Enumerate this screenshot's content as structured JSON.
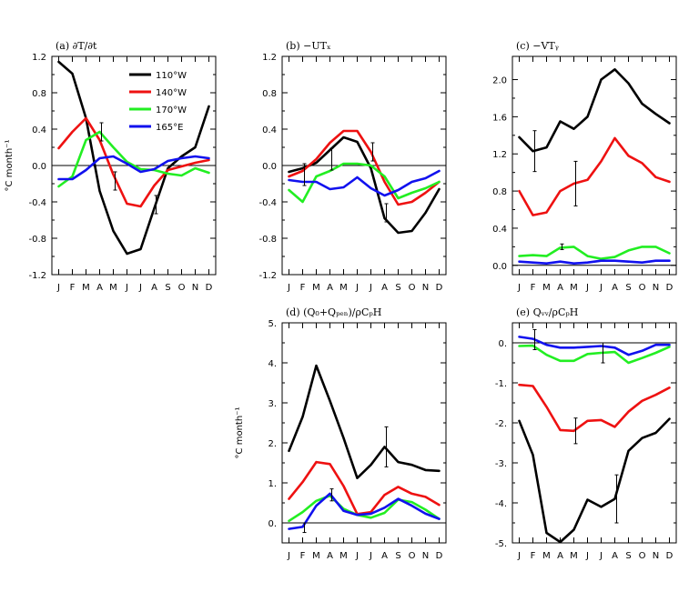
{
  "figure": {
    "ylabel": "°C month⁻¹",
    "months": [
      "J",
      "F",
      "M",
      "A",
      "M",
      "J",
      "J",
      "A",
      "S",
      "O",
      "N",
      "D"
    ],
    "legend": [
      {
        "name": "110°W",
        "color": "#000000"
      },
      {
        "name": "140°W",
        "color": "#ee1111"
      },
      {
        "name": "170°W",
        "color": "#22ee22"
      },
      {
        "name": "165°E",
        "color": "#1111ee"
      }
    ]
  },
  "chart_data": [
    {
      "id": "a",
      "type": "line",
      "title": "(a) ∂T/∂t",
      "ylim": [
        -1.2,
        1.2
      ],
      "yticks": [
        "1.2",
        "0.8",
        "0.4",
        "0.0",
        "-0.4",
        "-0.8",
        "-1.2"
      ],
      "ytick_values": [
        1.2,
        0.8,
        0.4,
        0.0,
        -0.4,
        -0.8,
        -1.2
      ],
      "show_ylabel": true,
      "series": [
        {
          "name": "110°W",
          "values": [
            1.14,
            1.01,
            0.52,
            -0.28,
            -0.72,
            -0.97,
            -0.92,
            -0.47,
            -0.03,
            0.1,
            0.2,
            0.65
          ]
        },
        {
          "name": "140°W",
          "values": [
            0.19,
            0.37,
            0.52,
            0.28,
            -0.1,
            -0.42,
            -0.45,
            -0.22,
            -0.05,
            -0.01,
            0.03,
            0.06
          ]
        },
        {
          "name": "170°W",
          "values": [
            -0.23,
            -0.12,
            0.28,
            0.37,
            0.2,
            0.04,
            -0.04,
            -0.05,
            -0.09,
            -0.11,
            -0.03,
            -0.08
          ]
        },
        {
          "name": "165°E",
          "values": [
            -0.15,
            -0.15,
            -0.05,
            0.08,
            0.1,
            0.02,
            -0.07,
            -0.04,
            0.05,
            0.08,
            0.1,
            0.08
          ]
        }
      ],
      "errorbars": [
        {
          "month": 4,
          "center": 0.37,
          "half": 0.1
        },
        {
          "month": 5,
          "center": -0.17,
          "half": 0.1
        },
        {
          "month": 8,
          "center": -0.43,
          "half": 0.1
        }
      ]
    },
    {
      "id": "b",
      "type": "line",
      "title": "(b) −UTₓ",
      "ylim": [
        -1.2,
        1.2
      ],
      "yticks": [
        "1.2",
        "0.8",
        "0.4",
        "0.0",
        "-0.4",
        "-0.8",
        "-1.2"
      ],
      "ytick_values": [
        1.2,
        0.8,
        0.4,
        0.0,
        -0.4,
        -0.8,
        -1.2
      ],
      "show_ylabel": false,
      "series": [
        {
          "name": "110°W",
          "values": [
            -0.07,
            -0.03,
            0.03,
            0.17,
            0.31,
            0.26,
            -0.03,
            -0.58,
            -0.74,
            -0.72,
            -0.52,
            -0.26
          ]
        },
        {
          "name": "140°W",
          "values": [
            -0.12,
            -0.06,
            0.07,
            0.25,
            0.38,
            0.38,
            0.15,
            -0.18,
            -0.43,
            -0.4,
            -0.3,
            -0.18
          ]
        },
        {
          "name": "170°W",
          "values": [
            -0.27,
            -0.4,
            -0.12,
            -0.06,
            0.02,
            0.02,
            0.0,
            -0.12,
            -0.36,
            -0.3,
            -0.25,
            -0.18
          ]
        },
        {
          "name": "165°E",
          "values": [
            -0.16,
            -0.18,
            -0.18,
            -0.26,
            -0.24,
            -0.13,
            -0.25,
            -0.33,
            -0.27,
            -0.18,
            -0.14,
            -0.06
          ]
        }
      ],
      "errorbars": [
        {
          "month": 2,
          "center": -0.1,
          "half": 0.12
        },
        {
          "month": 4,
          "center": 0.07,
          "half": 0.12
        },
        {
          "month": 7,
          "center": 0.15,
          "half": 0.1
        },
        {
          "month": 8,
          "center": -0.52,
          "half": 0.1
        }
      ]
    },
    {
      "id": "c",
      "type": "line",
      "title": "(c) −VTᵧ",
      "ylim": [
        -0.1,
        2.25
      ],
      "yticks": [
        "2.0",
        "1.6",
        "1.2",
        "0.8",
        "0.4",
        "0.0"
      ],
      "ytick_values": [
        2.0,
        1.6,
        1.2,
        0.8,
        0.4,
        0.0
      ],
      "show_ylabel": false,
      "series": [
        {
          "name": "110°W",
          "values": [
            1.38,
            1.23,
            1.27,
            1.55,
            1.47,
            1.6,
            2.0,
            2.11,
            1.96,
            1.74,
            1.63,
            1.53
          ]
        },
        {
          "name": "140°W",
          "values": [
            0.8,
            0.54,
            0.57,
            0.8,
            0.88,
            0.92,
            1.12,
            1.37,
            1.18,
            1.1,
            0.95,
            0.9
          ]
        },
        {
          "name": "170°W",
          "values": [
            0.1,
            0.11,
            0.1,
            0.19,
            0.2,
            0.1,
            0.07,
            0.09,
            0.16,
            0.2,
            0.2,
            0.13
          ]
        },
        {
          "name": "165°E",
          "values": [
            0.04,
            0.03,
            0.02,
            0.04,
            0.02,
            0.03,
            0.05,
            0.05,
            0.04,
            0.03,
            0.05,
            0.05
          ]
        }
      ],
      "errorbars": [
        {
          "month": 2,
          "center": 1.23,
          "half": 0.22
        },
        {
          "month": 4,
          "center": 0.2,
          "half": 0.03
        },
        {
          "month": 5,
          "center": 0.88,
          "half": 0.24
        }
      ]
    },
    {
      "id": "d",
      "type": "line",
      "title": "(d) (Q₀+Qₚₑₙ)/ρCₚH",
      "ylim": [
        -0.5,
        5.0
      ],
      "yticks": [
        "5.",
        "4.",
        "3.",
        "2.",
        "1.",
        "0."
      ],
      "ytick_values": [
        5,
        4,
        3,
        2,
        1,
        0
      ],
      "show_ylabel": true,
      "series": [
        {
          "name": "110°W",
          "values": [
            1.8,
            2.65,
            3.93,
            3.05,
            2.12,
            1.12,
            1.45,
            1.9,
            1.52,
            1.45,
            1.32,
            1.3
          ]
        },
        {
          "name": "140°W",
          "values": [
            0.6,
            1.02,
            1.52,
            1.47,
            0.92,
            0.22,
            0.27,
            0.7,
            0.9,
            0.73,
            0.65,
            0.45
          ]
        },
        {
          "name": "170°W",
          "values": [
            0.05,
            0.27,
            0.55,
            0.68,
            0.35,
            0.2,
            0.13,
            0.25,
            0.58,
            0.52,
            0.33,
            0.1
          ]
        },
        {
          "name": "165°E",
          "values": [
            -0.15,
            -0.1,
            0.43,
            0.73,
            0.3,
            0.2,
            0.23,
            0.38,
            0.6,
            0.43,
            0.23,
            0.1
          ]
        }
      ],
      "errorbars": [
        {
          "month": 2,
          "center": -0.12,
          "half": 0.12
        },
        {
          "month": 4,
          "center": 0.7,
          "half": 0.15
        },
        {
          "month": 8,
          "center": 1.9,
          "half": 0.5
        }
      ]
    },
    {
      "id": "e",
      "type": "line",
      "title": "(e) Qᵥᵥ/ρCₚH",
      "ylim": [
        -5.0,
        0.5
      ],
      "yticks": [
        "0.",
        "-1.",
        "-2.",
        "-3.",
        "-4.",
        "-5."
      ],
      "ytick_values": [
        0,
        -1,
        -2,
        -3,
        -4,
        -5
      ],
      "show_ylabel": false,
      "series": [
        {
          "name": "110°W",
          "values": [
            -1.95,
            -2.8,
            -4.75,
            -4.98,
            -4.67,
            -3.92,
            -4.1,
            -3.9,
            -2.7,
            -2.38,
            -2.25,
            -1.9
          ]
        },
        {
          "name": "140°W",
          "values": [
            -1.05,
            -1.08,
            -1.6,
            -2.18,
            -2.2,
            -1.95,
            -1.93,
            -2.1,
            -1.72,
            -1.45,
            -1.3,
            -1.12
          ]
        },
        {
          "name": "170°W",
          "values": [
            -0.08,
            -0.07,
            -0.3,
            -0.45,
            -0.45,
            -0.28,
            -0.25,
            -0.23,
            -0.5,
            -0.38,
            -0.25,
            -0.1
          ]
        },
        {
          "name": "165°E",
          "values": [
            0.15,
            0.1,
            -0.05,
            -0.12,
            -0.12,
            -0.1,
            -0.08,
            -0.12,
            -0.3,
            -0.2,
            -0.05,
            -0.05
          ]
        }
      ],
      "errorbars": [
        {
          "month": 2,
          "center": 0.08,
          "half": 0.25
        },
        {
          "month": 5,
          "center": -2.2,
          "half": 0.32
        },
        {
          "month": 7,
          "center": -0.25,
          "half": 0.25
        },
        {
          "month": 8,
          "center": -3.9,
          "half": 0.6
        }
      ]
    }
  ]
}
